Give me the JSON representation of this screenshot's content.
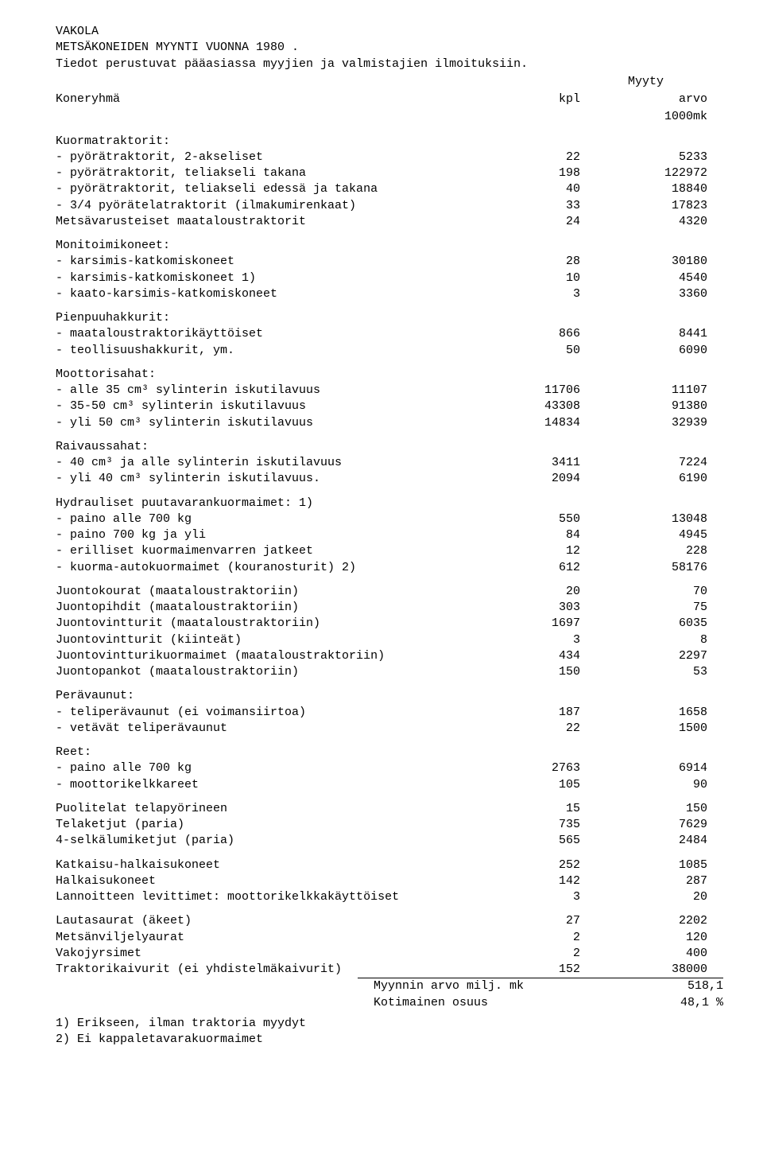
{
  "header": {
    "org": "VAKOLA",
    "title": "METSÄKONEIDEN MYYNTI VUONNA 1980 .",
    "subtitle": "Tiedot perustuvat pääasiassa myyjien ja valmistajien ilmoituksiin.",
    "group_label": "Koneryhmä",
    "myyty_label": "Myyty",
    "kpl_label": "kpl",
    "arvo_label": "arvo",
    "arvo_unit": "1000mk"
  },
  "sections": [
    {
      "title": "Kuormatraktorit:",
      "rows": [
        {
          "label": "- pyörätraktorit, 2-akseliset",
          "kpl": "22",
          "arvo": "5233"
        },
        {
          "label": "- pyörätraktorit, teliakseli takana",
          "kpl": "198",
          "arvo": "122972"
        },
        {
          "label": "- pyörätraktorit, teliakseli edessä ja takana",
          "kpl": "40",
          "arvo": "18840"
        },
        {
          "label": "- 3/4 pyörätelatraktorit (ilmakumirenkaat)",
          "kpl": "33",
          "arvo": "17823"
        },
        {
          "label": "Metsävarusteiset maataloustraktorit",
          "kpl": "24",
          "arvo": "4320"
        }
      ]
    },
    {
      "title": "Monitoimikoneet:",
      "rows": [
        {
          "label": "- karsimis-katkomiskoneet",
          "kpl": "28",
          "arvo": "30180"
        },
        {
          "label": "- karsimis-katkomiskoneet 1)",
          "kpl": "10",
          "arvo": "4540"
        },
        {
          "label": "- kaato-karsimis-katkomiskoneet",
          "kpl": "3",
          "arvo": "3360"
        }
      ]
    },
    {
      "title": "Pienpuuhakkurit:",
      "rows": [
        {
          "label": "- maataloustraktorikäyttöiset",
          "kpl": "866",
          "arvo": "8441"
        },
        {
          "label": "- teollisuushakkurit, ym.",
          "kpl": "50",
          "arvo": "6090"
        }
      ]
    },
    {
      "title": "Moottorisahat:",
      "rows": [
        {
          "label": "- alle 35 cm³ sylinterin iskutilavuus",
          "kpl": "11706",
          "arvo": "11107"
        },
        {
          "label": "- 35-50 cm³ sylinterin iskutilavuus",
          "kpl": "43308",
          "arvo": "91380"
        },
        {
          "label": "- yli 50 cm³ sylinterin iskutilavuus",
          "kpl": "14834",
          "arvo": "32939"
        }
      ]
    },
    {
      "title": "Raivaussahat:",
      "rows": [
        {
          "label": "- 40 cm³ ja alle sylinterin iskutilavuus",
          "kpl": "3411",
          "arvo": "7224"
        },
        {
          "label": "- yli 40 cm³ sylinterin iskutilavuus.",
          "kpl": "2094",
          "arvo": "6190"
        }
      ]
    },
    {
      "title": "Hydrauliset puutavarankuormaimet: 1)",
      "rows": [
        {
          "label": "- paino alle 700 kg",
          "kpl": "550",
          "arvo": "13048"
        },
        {
          "label": "- paino 700 kg ja yli",
          "kpl": "84",
          "arvo": "4945"
        },
        {
          "label": "- erilliset kuormaimenvarren jatkeet",
          "kpl": "12",
          "arvo": "228"
        },
        {
          "label": "- kuorma-autokuormaimet (kouranosturit) 2)",
          "kpl": "612",
          "arvo": "58176"
        }
      ]
    },
    {
      "title": "",
      "rows": [
        {
          "label": "Juontokourat (maataloustraktoriin)",
          "kpl": "20",
          "arvo": "70"
        },
        {
          "label": "Juontopihdit (maataloustraktoriin)",
          "kpl": "303",
          "arvo": "75"
        },
        {
          "label": "Juontovintturit (maataloustraktoriin)",
          "kpl": "1697",
          "arvo": "6035"
        },
        {
          "label": "Juontovintturit (kiinteät)",
          "kpl": "3",
          "arvo": "8"
        },
        {
          "label": "Juontovintturikuormaimet (maataloustraktoriin)",
          "kpl": "434",
          "arvo": "2297"
        },
        {
          "label": "Juontopankot (maataloustraktoriin)",
          "kpl": "150",
          "arvo": "53"
        }
      ]
    },
    {
      "title": "Perävaunut:",
      "rows": [
        {
          "label": "- teliperävaunut (ei voimansiirtoa)",
          "kpl": "187",
          "arvo": "1658"
        },
        {
          "label": "- vetävät teliperävaunut",
          "kpl": "22",
          "arvo": "1500"
        }
      ]
    },
    {
      "title": "Reet:",
      "rows": [
        {
          "label": "- paino alle 700 kg",
          "kpl": "2763",
          "arvo": "6914"
        },
        {
          "label": "- moottorikelkkareet",
          "kpl": "105",
          "arvo": "90"
        }
      ]
    },
    {
      "title": "",
      "rows": [
        {
          "label": "Puolitelat telapyörineen",
          "kpl": "15",
          "arvo": "150"
        },
        {
          "label": "Telaketjut (paria)",
          "kpl": "735",
          "arvo": "7629"
        },
        {
          "label": "4-selkälumiketjut (paria)",
          "kpl": "565",
          "arvo": "2484"
        }
      ]
    },
    {
      "title": "",
      "rows": [
        {
          "label": "Katkaisu-halkaisukoneet",
          "kpl": "252",
          "arvo": "1085"
        },
        {
          "label": "Halkaisukoneet",
          "kpl": "142",
          "arvo": "287"
        },
        {
          "label": "Lannoitteen levittimet: moottorikelkkakäyttöiset",
          "kpl": "3",
          "arvo": "20"
        }
      ]
    },
    {
      "title": "",
      "rows": [
        {
          "label": "Lautasaurat (äkeet)",
          "kpl": "27",
          "arvo": "2202"
        },
        {
          "label": "Metsänviljelyaurat",
          "kpl": "2",
          "arvo": "120"
        },
        {
          "label": "Vakojyrsimet",
          "kpl": "2",
          "arvo": "400"
        },
        {
          "label": "Traktorikaivurit (ei yhdistelmäkaivurit)",
          "kpl": "152",
          "arvo": "38000"
        }
      ]
    }
  ],
  "totals": {
    "label1": "Myynnin arvo milj. mk",
    "value1": "518,1",
    "label2": "Kotimainen osuus",
    "value2": "48,1 %"
  },
  "footnotes": {
    "fn1": "1)  Erikseen, ilman traktoria myydyt",
    "fn2": "2)  Ei kappaletavarakuormaimet"
  }
}
